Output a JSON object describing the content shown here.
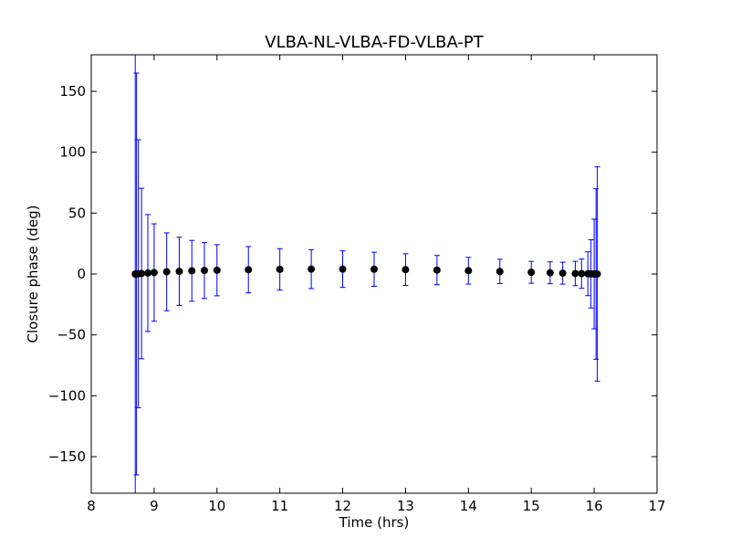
{
  "chart_data": {
    "type": "scatter",
    "title": "VLBA-NL-VLBA-FD-VLBA-PT",
    "xlabel": "Time (hrs)",
    "ylabel": "Closure phase (deg)",
    "xlim": [
      8,
      17
    ],
    "ylim": [
      -180,
      180
    ],
    "x_ticks": [
      8,
      9,
      10,
      11,
      12,
      13,
      14,
      15,
      16,
      17
    ],
    "y_ticks": [
      -150,
      -100,
      -50,
      0,
      50,
      100,
      150
    ],
    "grid": false,
    "legend": "none",
    "colors": {
      "points": "#000000",
      "errorbars": "#0000ff"
    },
    "series": [
      {
        "x": [
          8.7,
          8.72,
          8.75,
          8.8,
          8.9,
          9.0,
          9.2,
          9.4,
          9.6,
          9.8,
          10.0,
          10.5,
          11.0,
          11.5,
          12.0,
          12.5,
          13.0,
          13.5,
          14.0,
          14.5,
          15.0,
          15.3,
          15.5,
          15.7,
          15.8,
          15.9,
          15.95,
          16.0,
          16.03,
          16.05
        ],
        "y": [
          0,
          0,
          0.2,
          0.4,
          0.8,
          1.2,
          1.8,
          2.2,
          2.6,
          2.9,
          3.1,
          3.5,
          3.8,
          4.0,
          4.0,
          3.9,
          3.6,
          3.2,
          2.7,
          2.1,
          1.4,
          1.0,
          0.7,
          0.4,
          0.3,
          0.2,
          0.1,
          0,
          0,
          0
        ],
        "yerr": [
          180,
          165,
          110,
          70,
          48,
          40,
          32,
          28,
          25,
          23,
          21,
          19,
          17,
          16,
          15,
          14,
          13,
          12,
          11,
          10,
          9,
          9,
          9,
          10,
          12,
          18,
          28,
          45,
          70,
          88
        ]
      }
    ]
  }
}
